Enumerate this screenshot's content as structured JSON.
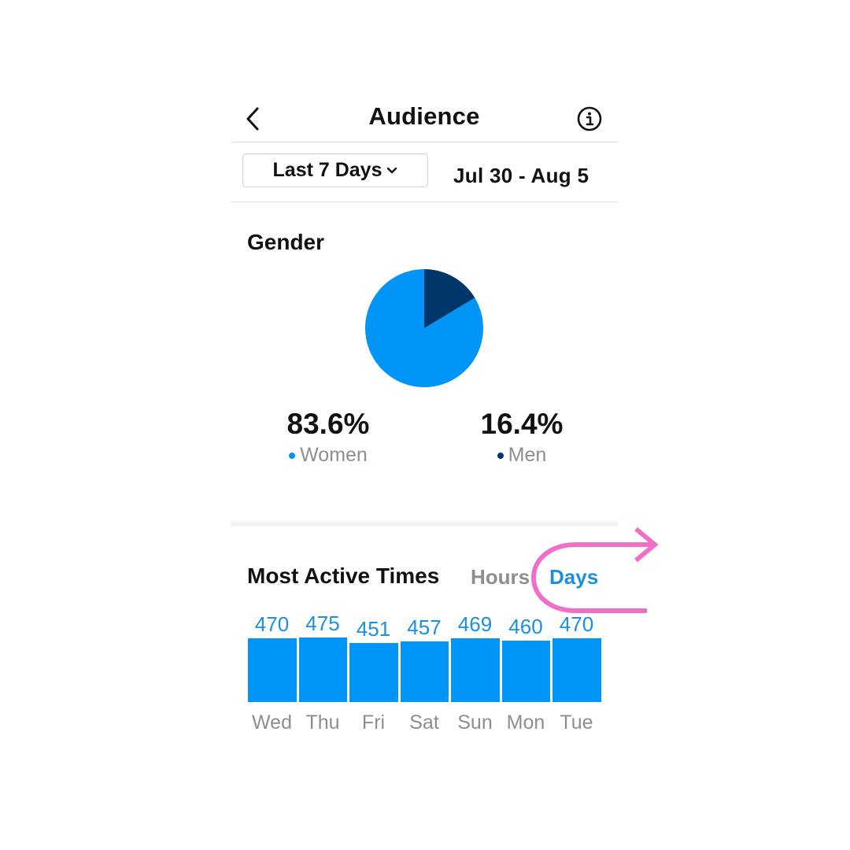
{
  "header": {
    "title": "Audience",
    "back_icon": "chevron-left-icon",
    "info_icon": "info-icon"
  },
  "range": {
    "selected": "Last 7 Days",
    "dates": "Jul 30 - Aug 5"
  },
  "gender": {
    "title": "Gender",
    "women": {
      "percent": "83.6%",
      "label": "Women",
      "color": "#0095f6",
      "value": 83.6
    },
    "men": {
      "percent": "16.4%",
      "label": "Men",
      "color": "#00376b",
      "value": 16.4
    }
  },
  "active_times": {
    "title": "Most Active Times",
    "tabs": [
      {
        "label": "Hours",
        "active": false
      },
      {
        "label": "Days",
        "active": true
      }
    ]
  },
  "colors": {
    "accent": "#0095f6",
    "dark": "#00376b",
    "annotation": "#f06fc7"
  },
  "chart_data": [
    {
      "type": "pie",
      "categories": [
        "Women",
        "Men"
      ],
      "values": [
        83.6,
        16.4
      ]
    },
    {
      "type": "bar",
      "categories": [
        "Wed",
        "Thu",
        "Fri",
        "Sat",
        "Sun",
        "Mon",
        "Tue"
      ],
      "values": [
        470,
        475,
        451,
        457,
        469,
        460,
        470
      ],
      "value_labels": [
        "470",
        "475",
        "451",
        "457",
        "469",
        "460",
        "470"
      ]
    }
  ]
}
